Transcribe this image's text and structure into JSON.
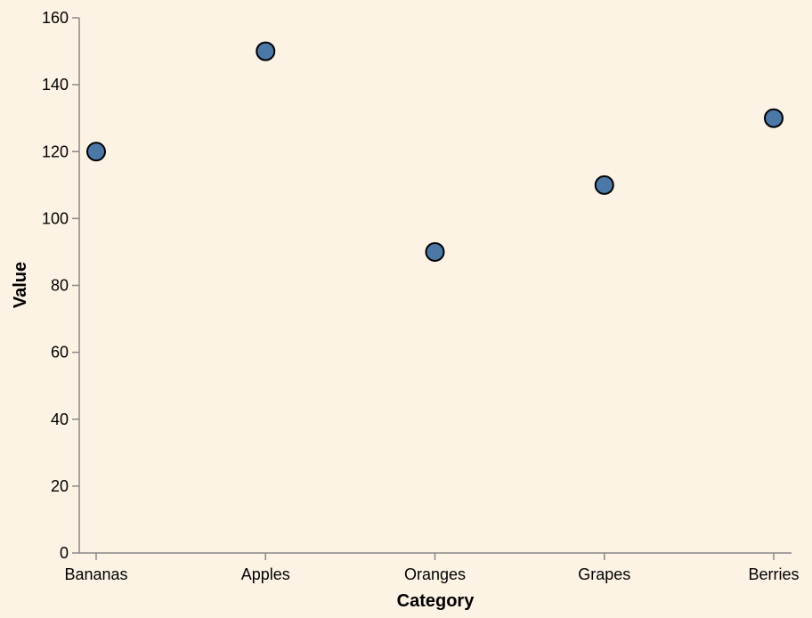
{
  "chart_data": {
    "type": "scatter",
    "categories": [
      "Bananas",
      "Apples",
      "Oranges",
      "Grapes",
      "Berries"
    ],
    "values": [
      120,
      150,
      90,
      110,
      130
    ],
    "xlabel": "Category",
    "ylabel": "Value",
    "ylim": [
      0,
      160
    ],
    "yticks": [
      0,
      20,
      40,
      60,
      80,
      100,
      120,
      140,
      160
    ],
    "grid": false,
    "point_color": "#4c78a8",
    "background": "#fdf3e5"
  }
}
